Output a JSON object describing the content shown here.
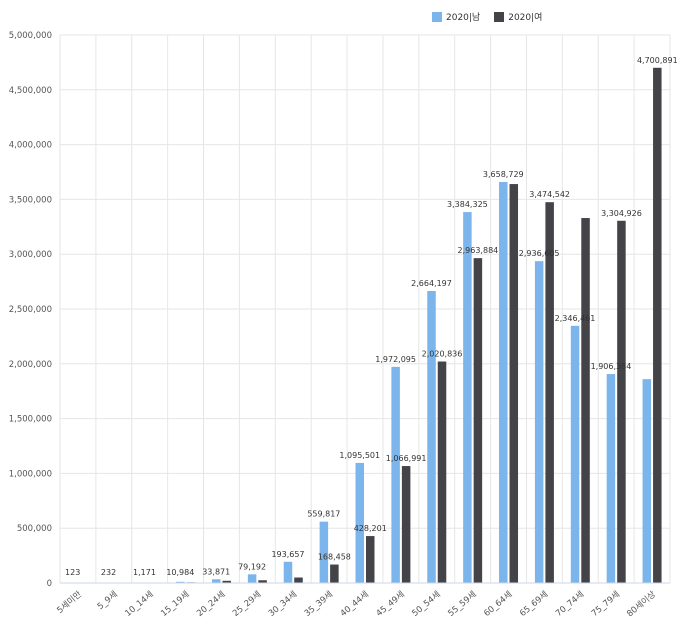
{
  "chart_data": {
    "type": "bar",
    "categories": [
      "5세미만",
      "5_9세",
      "10_14세",
      "15_19세",
      "20_24세",
      "25_29세",
      "30_34세",
      "35_39세",
      "40_44세",
      "45_49세",
      "50_54세",
      "55_59세",
      "60_64세",
      "65_69세",
      "70_74세",
      "75_79세",
      "80세이상"
    ],
    "series": [
      {
        "name": "2020|남",
        "color": "#7cb5ec",
        "values": [
          123,
          232,
          1171,
          10984,
          33871,
          79192,
          193657,
          559817,
          1095501,
          1972095,
          2664197,
          3384325,
          3658729,
          2936605,
          2346461,
          1906384,
          1860000
        ]
      },
      {
        "name": "2020|여",
        "color": "#434348",
        "values": [
          40,
          80,
          700,
          6000,
          20000,
          25000,
          50000,
          168458,
          428201,
          1066991,
          2020836,
          2963884,
          3640000,
          3474542,
          3330000,
          3304926,
          4700891
        ]
      }
    ],
    "data_labels": [
      {
        "category": 0,
        "series": 0,
        "text": "123"
      },
      {
        "category": 1,
        "series": 0,
        "text": "232"
      },
      {
        "category": 2,
        "series": 0,
        "text": "1,171"
      },
      {
        "category": 3,
        "series": 0,
        "text": "10,984"
      },
      {
        "category": 4,
        "series": 0,
        "text": "33,871"
      },
      {
        "category": 5,
        "series": 0,
        "text": "79,192"
      },
      {
        "category": 6,
        "series": 0,
        "text": "193,657"
      },
      {
        "category": 7,
        "series": 0,
        "text": "559,817"
      },
      {
        "category": 7,
        "series": 1,
        "text": "168,458"
      },
      {
        "category": 8,
        "series": 0,
        "text": "1,095,501"
      },
      {
        "category": 8,
        "series": 1,
        "text": "428,201"
      },
      {
        "category": 9,
        "series": 0,
        "text": "1,972,095"
      },
      {
        "category": 9,
        "series": 1,
        "text": "1,066,991"
      },
      {
        "category": 10,
        "series": 0,
        "text": "2,664,197"
      },
      {
        "category": 10,
        "series": 1,
        "text": "2,020,836"
      },
      {
        "category": 11,
        "series": 0,
        "text": "3,384,325"
      },
      {
        "category": 11,
        "series": 1,
        "text": "2,963,884"
      },
      {
        "category": 12,
        "series": 0,
        "text": "3,658,729"
      },
      {
        "category": 13,
        "series": 0,
        "text": "2,936,605"
      },
      {
        "category": 13,
        "series": 1,
        "text": "3,474,542"
      },
      {
        "category": 14,
        "series": 0,
        "text": "2,346,461"
      },
      {
        "category": 15,
        "series": 0,
        "text": "1,906,384"
      },
      {
        "category": 15,
        "series": 1,
        "text": "3,304,926"
      },
      {
        "category": 16,
        "series": 1,
        "text": "4,700,891"
      }
    ],
    "yticks": [
      "0",
      "500,000",
      "1,000,000",
      "1,500,000",
      "2,000,000",
      "2,500,000",
      "3,000,000",
      "3,500,000",
      "4,000,000",
      "4,500,000",
      "5,000,000"
    ],
    "ylim": [
      0,
      5000000
    ],
    "grid": true,
    "legend_position": "top-right"
  }
}
